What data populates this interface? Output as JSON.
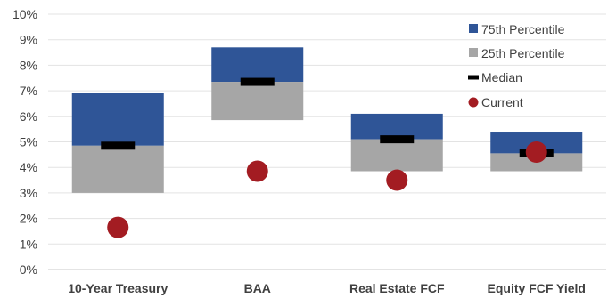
{
  "chart_data": {
    "type": "bar",
    "title": "",
    "xlabel": "",
    "ylabel": "",
    "ylim": [
      0,
      10
    ],
    "y_tick_labels": [
      "0%",
      "1%",
      "2%",
      "3%",
      "4%",
      "5%",
      "6%",
      "7%",
      "8%",
      "9%",
      "10%"
    ],
    "grid": true,
    "legend_position": "top-right",
    "categories": [
      "10-Year Treasury",
      "BAA",
      "Real Estate FCF",
      "Equity FCF Yield"
    ],
    "series": [
      {
        "name": "75th Percentile",
        "color": "#2f5597",
        "values": [
          6.9,
          8.7,
          6.1,
          5.4
        ]
      },
      {
        "name": "25th Percentile",
        "color": "#a6a6a6",
        "values": [
          3.0,
          5.85,
          3.85,
          3.85
        ]
      },
      {
        "name": "Median",
        "color": "#000000",
        "values": [
          4.85,
          7.35,
          5.1,
          4.55
        ]
      },
      {
        "name": "Current",
        "color": "#a31c22",
        "values": [
          1.65,
          3.85,
          3.5,
          4.6
        ]
      }
    ]
  }
}
